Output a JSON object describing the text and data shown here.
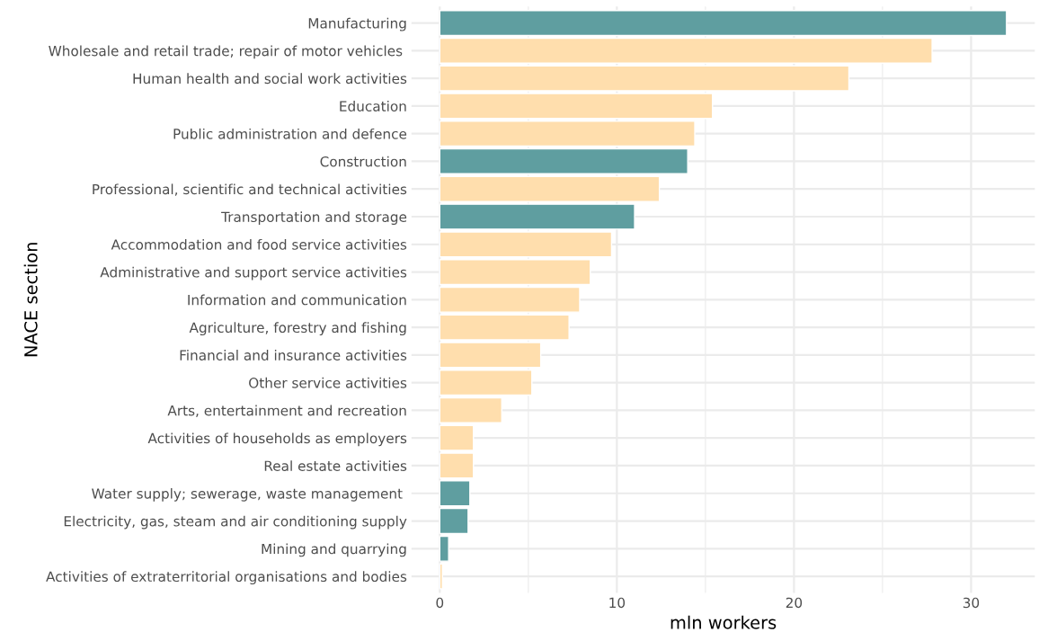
{
  "chart_data": {
    "type": "bar",
    "orientation": "horizontal",
    "xlabel": "mln workers",
    "ylabel": "NACE section",
    "categories": [
      "Manufacturing",
      "Wholesale and retail trade; repair of motor vehicles ",
      "Human health and social work activities",
      "Education",
      "Public administration and defence",
      "Construction",
      "Professional, scientific and technical activities",
      "Transportation and storage",
      "Accommodation and food service activities",
      "Administrative and support service activities",
      "Information and communication",
      "Agriculture, forestry and fishing",
      "Financial and insurance activities",
      "Other service activities",
      "Arts, entertainment and recreation",
      "Activities of households as employers",
      "Real estate activities",
      "Water supply; sewerage, waste management ",
      "Electricity, gas, steam and air conditioning supply",
      "Mining and quarrying",
      "Activities of extraterritorial organisations and bodies"
    ],
    "values": [
      32.0,
      27.8,
      23.1,
      15.4,
      14.4,
      14.0,
      12.4,
      11.0,
      9.7,
      8.5,
      7.9,
      7.3,
      5.7,
      5.2,
      3.5,
      1.9,
      1.9,
      1.7,
      1.6,
      0.5,
      0.15
    ],
    "colors": [
      "#5f9ea0",
      "#ffdead",
      "#ffdead",
      "#ffdead",
      "#ffdead",
      "#5f9ea0",
      "#ffdead",
      "#5f9ea0",
      "#ffdead",
      "#ffdead",
      "#ffdead",
      "#ffdead",
      "#ffdead",
      "#ffdead",
      "#ffdead",
      "#ffdead",
      "#ffdead",
      "#5f9ea0",
      "#5f9ea0",
      "#5f9ea0",
      "#ffdead"
    ],
    "xlim": [
      -1.6,
      33.6
    ],
    "xticks": [
      0,
      10,
      20,
      30
    ],
    "grid": true,
    "legend": false
  }
}
